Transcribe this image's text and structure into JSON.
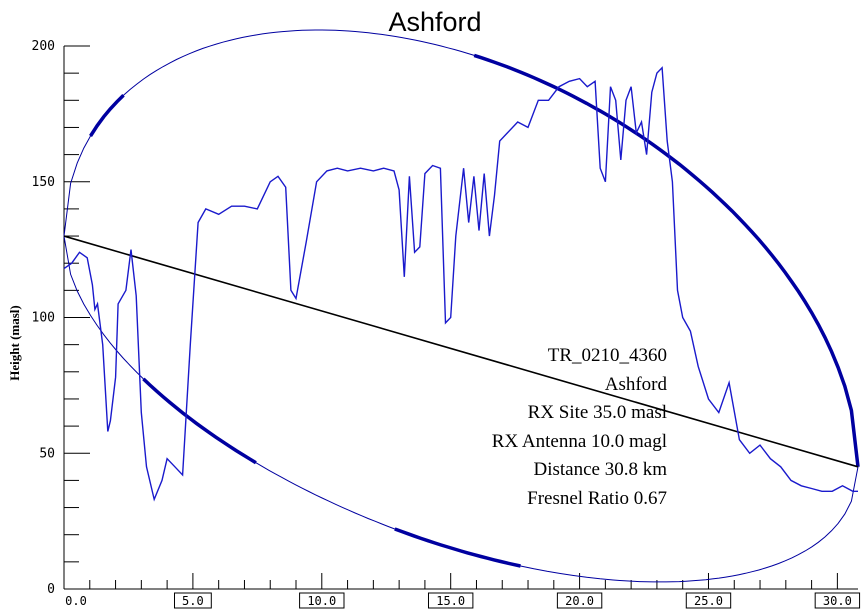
{
  "chart_data": {
    "type": "line",
    "title": "Ashford",
    "ylabel": "Height (masl)",
    "xlabel": "",
    "xlim": [
      0,
      30.8
    ],
    "ylim": [
      0,
      200
    ],
    "x_ticks": [
      "0.0",
      "5.0",
      "10.0",
      "15.0",
      "20.0",
      "25.0",
      "30.0"
    ],
    "y_ticks": [
      "0",
      "50",
      "100",
      "150",
      "200"
    ],
    "grid": false,
    "terrain_profile": {
      "x": [
        0.0,
        0.3,
        0.6,
        0.9,
        1.1,
        1.2,
        1.3,
        1.5,
        1.7,
        1.8,
        2.0,
        2.1,
        2.4,
        2.6,
        2.8,
        3.0,
        3.2,
        3.5,
        3.8,
        4.0,
        4.3,
        4.6,
        4.9,
        5.2,
        5.5,
        6.0,
        6.5,
        7.0,
        7.5,
        8.0,
        8.3,
        8.6,
        8.8,
        9.0,
        9.4,
        9.8,
        10.2,
        10.6,
        11.0,
        11.5,
        12.0,
        12.4,
        12.8,
        13.0,
        13.2,
        13.4,
        13.6,
        13.8,
        14.0,
        14.3,
        14.6,
        14.8,
        15.0,
        15.2,
        15.5,
        15.7,
        15.9,
        16.1,
        16.3,
        16.5,
        16.7,
        16.9,
        17.2,
        17.6,
        18.0,
        18.4,
        18.8,
        19.2,
        19.6,
        20.0,
        20.3,
        20.6,
        20.8,
        21.0,
        21.2,
        21.4,
        21.6,
        21.8,
        22.0,
        22.2,
        22.4,
        22.6,
        22.8,
        23.0,
        23.2,
        23.4,
        23.6,
        23.8,
        24.0,
        24.3,
        24.6,
        25.0,
        25.4,
        25.8,
        26.2,
        26.6,
        27.0,
        27.4,
        27.8,
        28.2,
        28.6,
        29.0,
        29.4,
        29.8,
        30.2,
        30.6,
        30.8
      ],
      "y": [
        118,
        120,
        124,
        122,
        112,
        103,
        105,
        90,
        58,
        62,
        78,
        105,
        110,
        125,
        108,
        65,
        45,
        33,
        40,
        48,
        45,
        42,
        90,
        135,
        140,
        138,
        141,
        141,
        140,
        150,
        152,
        148,
        110,
        107,
        128,
        150,
        154,
        155,
        154,
        155,
        154,
        155,
        154,
        147,
        115,
        152,
        124,
        126,
        153,
        156,
        155,
        98,
        100,
        130,
        155,
        135,
        152,
        132,
        153,
        130,
        145,
        165,
        168,
        172,
        170,
        180,
        180,
        185,
        187,
        188,
        185,
        187,
        155,
        150,
        185,
        180,
        158,
        180,
        185,
        168,
        172,
        160,
        183,
        190,
        192,
        165,
        150,
        110,
        100,
        95,
        82,
        70,
        65,
        76,
        55,
        50,
        53,
        48,
        45,
        40,
        38,
        37,
        36,
        36,
        38,
        36,
        36
      ]
    },
    "line_of_sight": {
      "x": [
        0.0,
        30.8
      ],
      "y": [
        130,
        45
      ]
    },
    "fresnel_ellipse": {
      "start": [
        0.0,
        130
      ],
      "end": [
        30.8,
        45
      ],
      "peak_height": 198,
      "lower_apex": 14
    },
    "annotations": [
      "TR_0210_4360",
      "Ashford",
      "RX Site   35.0 masl",
      "RX Antenna   10.0 magl",
      "Distance   30.8 km",
      "Fresnel Ratio   0.67"
    ],
    "colors": {
      "terrain": "#1a1acc",
      "fresnel": "#0000a0",
      "line_of_sight": "#000000",
      "axes": "#000000"
    }
  }
}
